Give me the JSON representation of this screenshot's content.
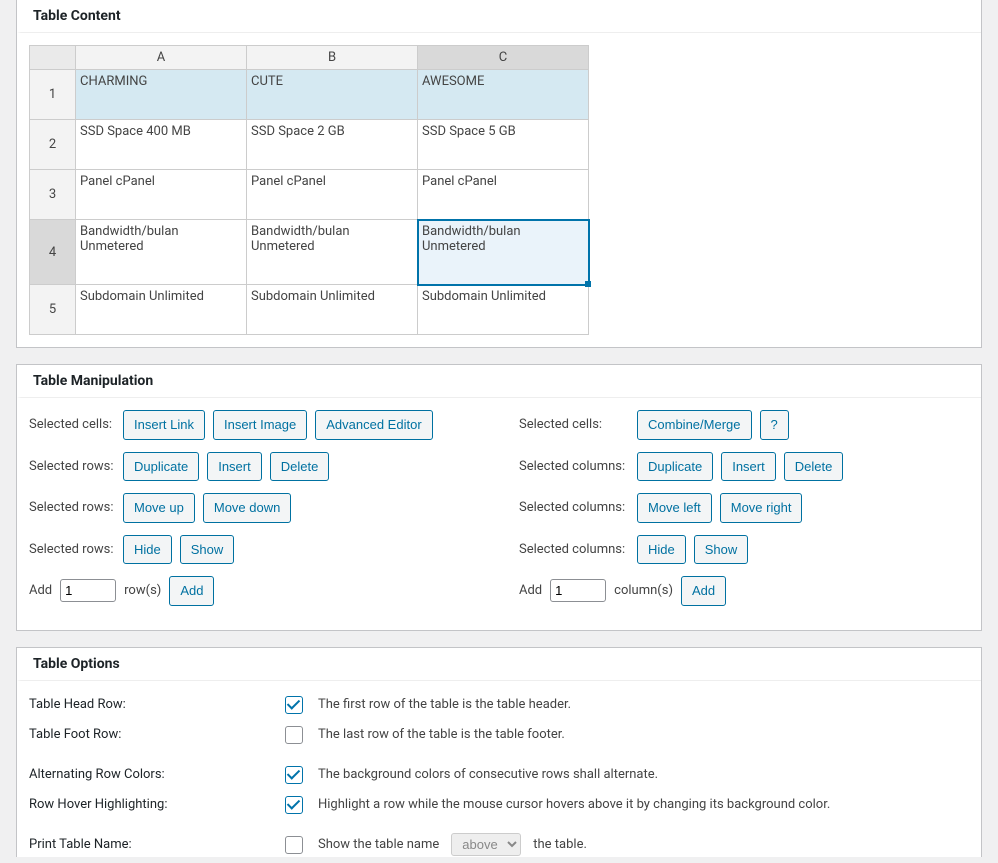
{
  "tableContent": {
    "title": "Table Content",
    "columns": [
      "A",
      "B",
      "C"
    ],
    "rowNumbers": [
      "1",
      "2",
      "3",
      "4",
      "5"
    ],
    "rows": [
      [
        "CHARMING",
        "CUTE",
        "AWESOME"
      ],
      [
        "SSD Space 400 MB",
        "SSD Space 2 GB",
        "SSD Space 5 GB"
      ],
      [
        "Panel cPanel",
        "Panel cPanel",
        "Panel cPanel"
      ],
      [
        "Bandwidth/bulan Unmetered",
        "Bandwidth/bulan Unmetered",
        "Bandwidth/bulan Unmetered"
      ],
      [
        "Subdomain Unlimited",
        "Subdomain Unlimited",
        "Subdomain Unlimited"
      ]
    ],
    "selectedRow": 3,
    "selectedCol": 2,
    "headerRowHighlighted": true
  },
  "manipulation": {
    "title": "Table Manipulation",
    "left": {
      "cells": {
        "label": "Selected cells:",
        "buttons": [
          "Insert Link",
          "Insert Image",
          "Advanced Editor"
        ]
      },
      "rowsA": {
        "label": "Selected rows:",
        "buttons": [
          "Duplicate",
          "Insert",
          "Delete"
        ]
      },
      "rowsB": {
        "label": "Selected rows:",
        "buttons": [
          "Move up",
          "Move down"
        ]
      },
      "rowsC": {
        "label": "Selected rows:",
        "buttons": [
          "Hide",
          "Show"
        ]
      },
      "add": {
        "prefix": "Add",
        "value": "1",
        "suffix": "row(s)",
        "button": "Add"
      }
    },
    "right": {
      "cells": {
        "label": "Selected cells:",
        "buttons": [
          "Combine/Merge",
          "?"
        ]
      },
      "colsA": {
        "label": "Selected columns:",
        "buttons": [
          "Duplicate",
          "Insert",
          "Delete"
        ]
      },
      "colsB": {
        "label": "Selected columns:",
        "buttons": [
          "Move left",
          "Move right"
        ]
      },
      "colsC": {
        "label": "Selected columns:",
        "buttons": [
          "Hide",
          "Show"
        ]
      },
      "add": {
        "prefix": "Add",
        "value": "1",
        "suffix": "column(s)",
        "button": "Add"
      }
    }
  },
  "options": {
    "title": "Table Options",
    "headRow": {
      "label": "Table Head Row:",
      "desc": "The first row of the table is the table header.",
      "checked": true
    },
    "footRow": {
      "label": "Table Foot Row:",
      "desc": "The last row of the table is the table footer.",
      "checked": false
    },
    "altColors": {
      "label": "Alternating Row Colors:",
      "desc": "The background colors of consecutive rows shall alternate.",
      "checked": true
    },
    "hover": {
      "label": "Row Hover Highlighting:",
      "desc": "Highlight a row while the mouse cursor hovers above it by changing its background color.",
      "checked": true
    },
    "printName": {
      "label": "Print Table Name:",
      "descPrefix": "Show the table name",
      "selectValue": "above",
      "descSuffix": "the table.",
      "checked": false
    }
  }
}
